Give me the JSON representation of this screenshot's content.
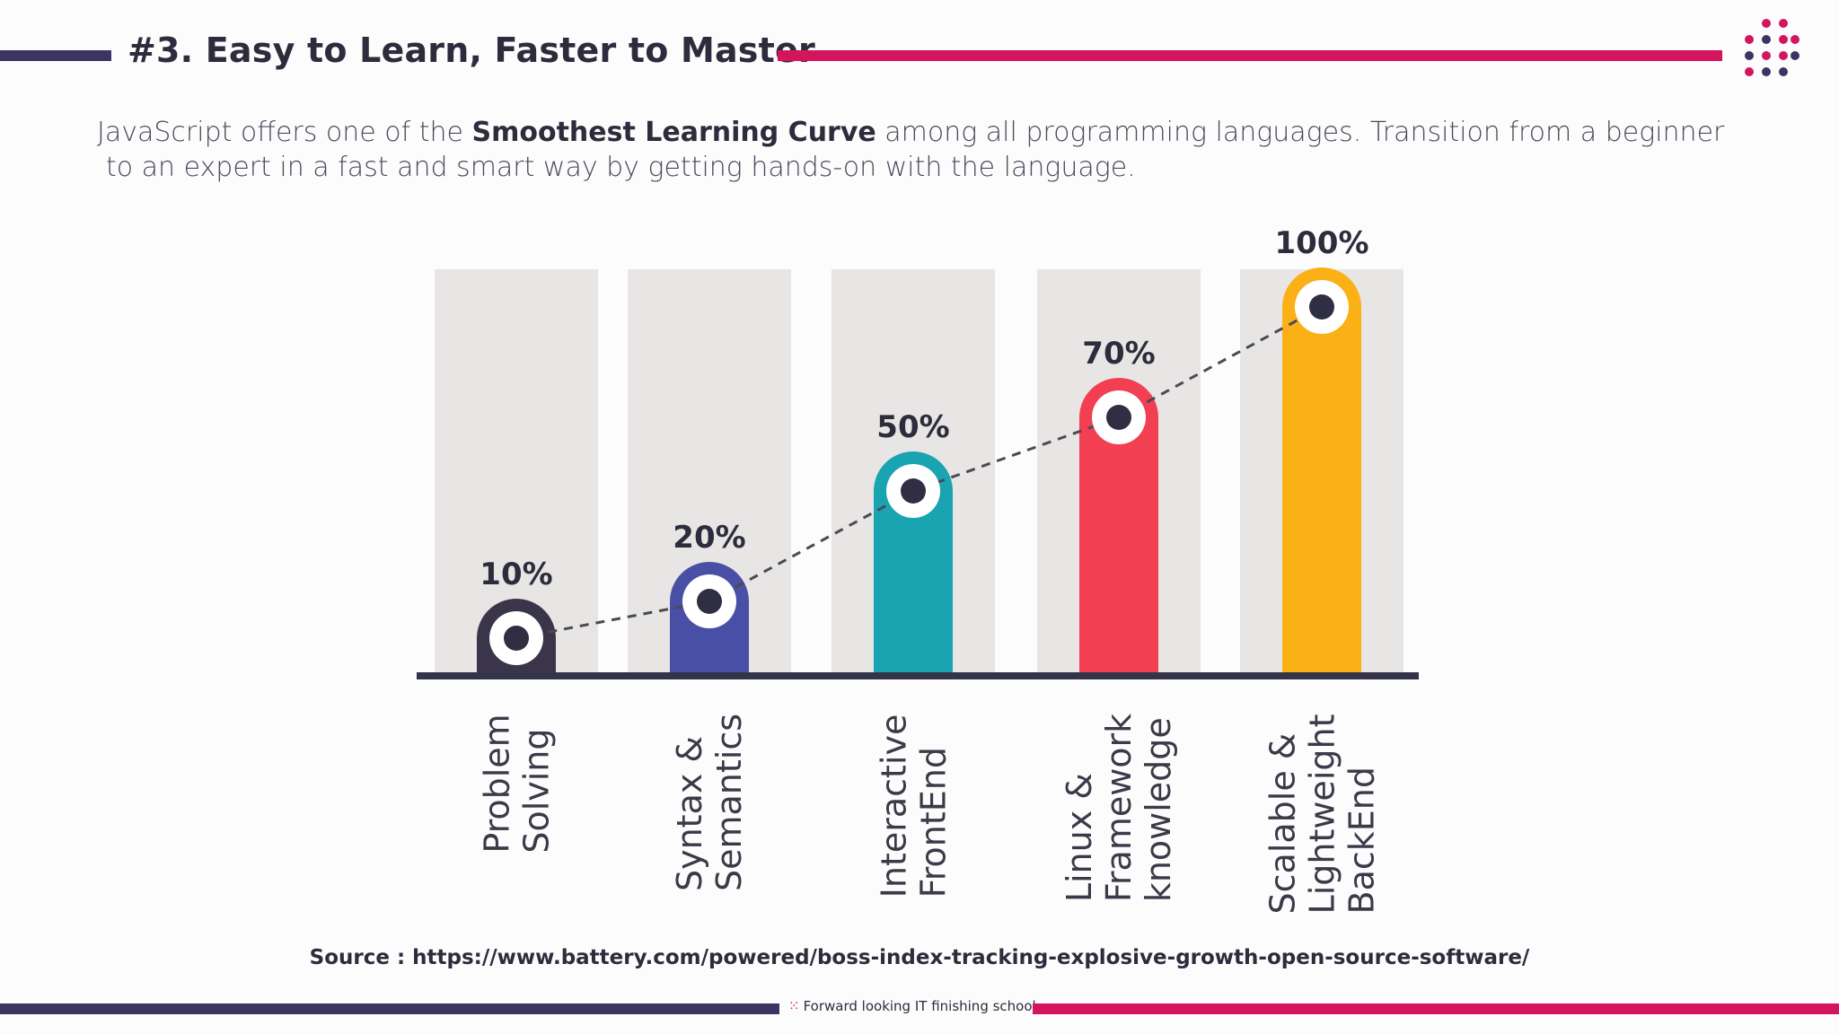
{
  "header": {
    "title": "#3. Easy to Learn, Faster to Master"
  },
  "intro": {
    "pre": "JavaScript offers one of the ",
    "bold": "Smoothest Learning Curve",
    "post": " among all programming languages. Transition from a beginner",
    "line2": "to an expert in a fast and smart way by getting hands-on with the language."
  },
  "colors": {
    "navy": "#3a3563",
    "magenta": "#d5145e",
    "track": "#e8e6e4"
  },
  "chart_data": {
    "type": "bar",
    "title": "",
    "categories": [
      [
        "Problem",
        "Solving"
      ],
      [
        "Syntax &",
        "Semantics"
      ],
      [
        "Interactive",
        "FrontEnd"
      ],
      [
        "Linux &",
        "Framework",
        "knowledge"
      ],
      [
        "Scalable &",
        "Lightweight",
        "BackEnd"
      ]
    ],
    "values": [
      10,
      20,
      50,
      70,
      100
    ],
    "value_labels": [
      "10%",
      "20%",
      "50%",
      "70%",
      "100%"
    ],
    "bar_colors": [
      "#3a3548",
      "#4a4fa6",
      "#1aa3b1",
      "#f23f52",
      "#fbb016"
    ],
    "ylim": [
      0,
      100
    ],
    "trend_line": "dashed",
    "grid": false,
    "legend": "none"
  },
  "footer": {
    "source": "Source : https://www.battery.com/powered/boss-index-tracking-explosive-growth-open-source-software/",
    "tagline": "Forward looking IT finishing school"
  },
  "logo": {
    "icon": "dot-grid-logo"
  }
}
